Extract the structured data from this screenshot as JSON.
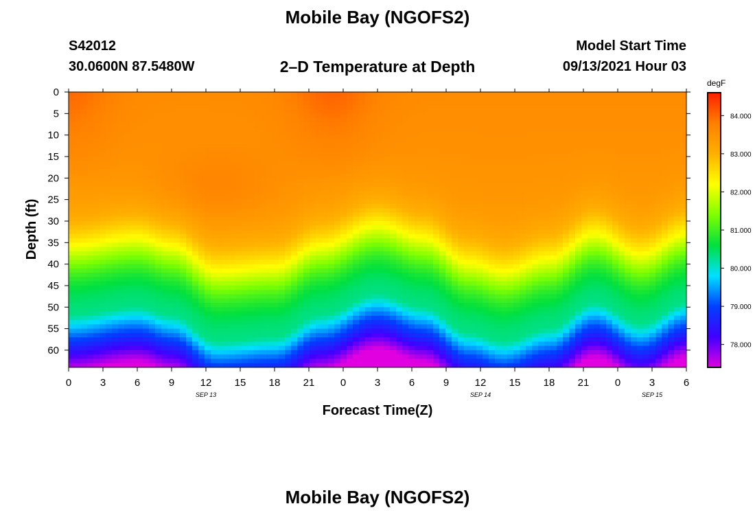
{
  "header": {
    "title": "Mobile Bay (NGOFS2)",
    "station_id": "S42012",
    "station_coords": "30.0600N  87.5480W",
    "plot_title": "2–D Temperature at Depth",
    "model_start_label": "Model Start Time",
    "model_start_value": "09/13/2021 Hour 03"
  },
  "footer": {
    "title": "Mobile Bay (NGOFS2)"
  },
  "chart_data": {
    "type": "heatmap",
    "title": "2–D Temperature at Depth",
    "xlabel": "Forecast Time(Z)",
    "ylabel": "Depth (ft)",
    "x_range_hours": [
      0,
      54
    ],
    "x_ticks": [
      "0",
      "3",
      "6",
      "9",
      "12",
      "15",
      "18",
      "21",
      "0",
      "3",
      "6",
      "9",
      "12",
      "15",
      "18",
      "21",
      "0",
      "3",
      "6"
    ],
    "date_labels": [
      {
        "label": "SEP 13",
        "at_hour": 12
      },
      {
        "label": "SEP 14",
        "at_hour": 36
      },
      {
        "label": "SEP 15",
        "at_hour": 51
      }
    ],
    "y_range_ft": [
      0,
      64
    ],
    "y_ticks": [
      0,
      5,
      10,
      15,
      20,
      25,
      30,
      35,
      40,
      45,
      50,
      55,
      60
    ],
    "y_inverted": true,
    "colorbar": {
      "unit": "degF",
      "range": [
        77.4,
        84.6
      ],
      "ticks": [
        "84.000",
        "83.000",
        "82.000",
        "81.000",
        "80.000",
        "79.000",
        "78.000"
      ],
      "colormap": [
        "#e000e0",
        "#4000ff",
        "#0040ff",
        "#00e0ff",
        "#00e040",
        "#80ff00",
        "#ffff00",
        "#ffb000",
        "#ff8000",
        "#ff2000"
      ]
    },
    "thermocline_depth_ft_by_hour": [
      [
        0,
        52
      ],
      [
        6,
        50
      ],
      [
        9,
        52
      ],
      [
        13,
        58
      ],
      [
        18,
        57
      ],
      [
        22,
        52
      ],
      [
        27,
        47
      ],
      [
        31,
        50
      ],
      [
        35,
        56
      ],
      [
        38,
        58
      ],
      [
        42,
        55
      ],
      [
        46,
        49
      ],
      [
        50,
        54
      ],
      [
        54,
        49
      ]
    ],
    "surface_temperature_degF": 84.4,
    "bottom_min_temperature_degF": 77.8
  }
}
